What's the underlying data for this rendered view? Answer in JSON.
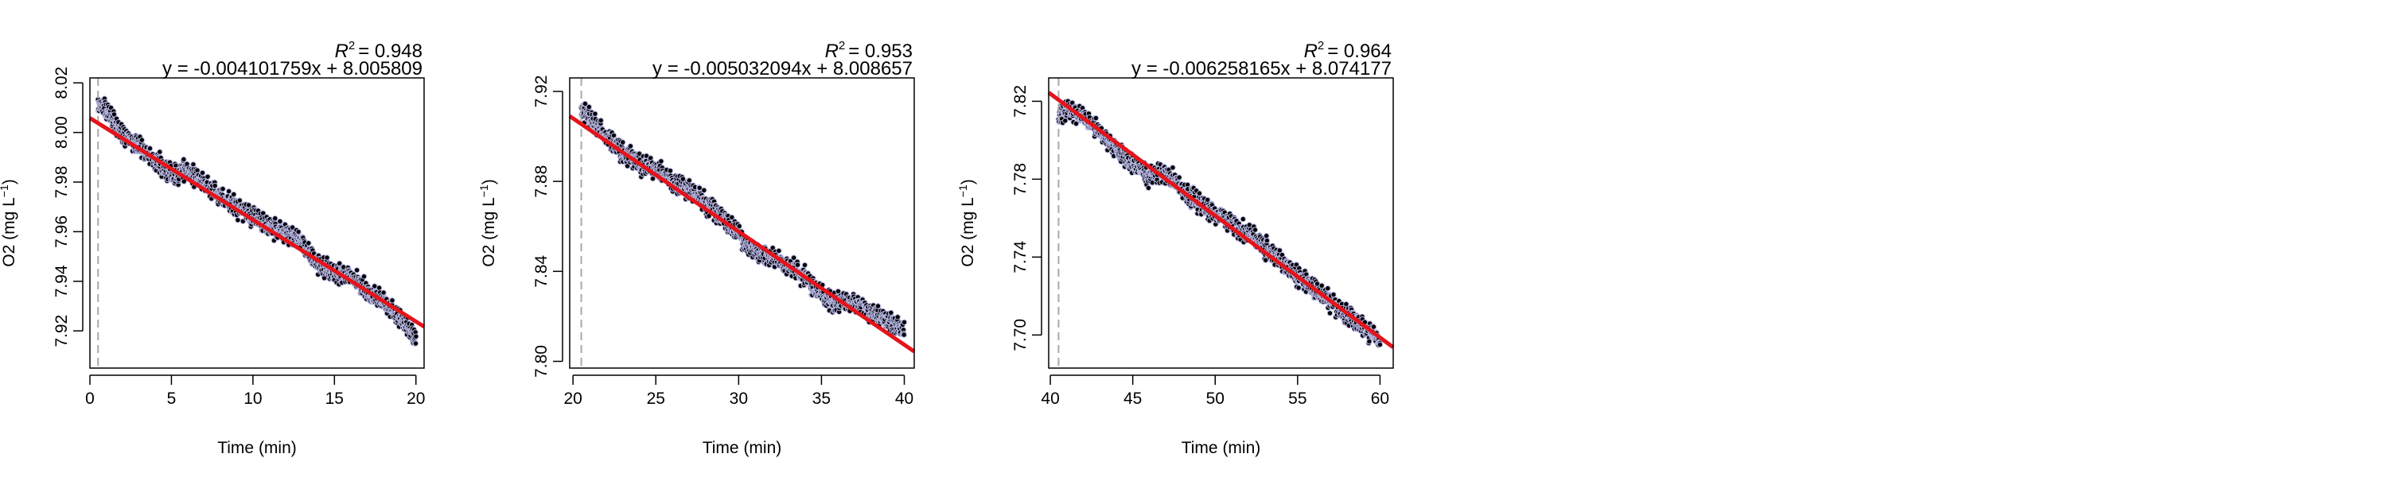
{
  "figure": {
    "background": "#ffffff",
    "point_fill": "#000000",
    "point_stroke": "#b9b9e6",
    "fit_color": "#e4141b",
    "cutoff_color": "#a8a8a8"
  },
  "chart_data": [
    {
      "type": "scatter",
      "title": "",
      "xlabel": "Time (min)",
      "ylabel_prefix": "O2 (mg L",
      "ylabel_exp": "−1",
      "ylabel_suffix": ")",
      "xlim": [
        0,
        20.5
      ],
      "ylim": [
        7.905,
        8.022
      ],
      "xticks": [
        0,
        5,
        10,
        15,
        20
      ],
      "xtick_labels": [
        "0",
        "5",
        "10",
        "15",
        "20"
      ],
      "yticks": [
        7.92,
        7.94,
        7.96,
        7.98,
        8.0,
        8.02
      ],
      "ytick_labels": [
        "7.92",
        "7.94",
        "7.96",
        "7.98",
        "8.00",
        "8.02"
      ],
      "r2_prefix": "R",
      "r2_exp": "2",
      "r2_value": "= 0.948",
      "equation": "y = -0.004101759x + 8.005809",
      "fit": {
        "slope": -0.004101759,
        "intercept": 8.005809
      },
      "cutoff_x": 0.5,
      "series": {
        "start": 0.5,
        "end": 20.0,
        "n": 1170,
        "noise": 0.0035,
        "points": [
          [
            0.5,
            8.011
          ],
          [
            1.0,
            8.01
          ],
          [
            1.5,
            8.004
          ],
          [
            2.0,
            7.999
          ],
          [
            3.0,
            7.995
          ],
          [
            4.0,
            7.989
          ],
          [
            5.0,
            7.983
          ],
          [
            6.0,
            7.985
          ],
          [
            7.0,
            7.979
          ],
          [
            8.0,
            7.974
          ],
          [
            9.0,
            7.97
          ],
          [
            10.0,
            7.966
          ],
          [
            11.0,
            7.962
          ],
          [
            12.0,
            7.96
          ],
          [
            13.0,
            7.955
          ],
          [
            14.0,
            7.947
          ],
          [
            15.0,
            7.943
          ],
          [
            16.0,
            7.942
          ],
          [
            17.0,
            7.936
          ],
          [
            18.0,
            7.932
          ],
          [
            19.0,
            7.925
          ],
          [
            20.0,
            7.917
          ]
        ]
      }
    },
    {
      "type": "scatter",
      "title": "",
      "xlabel": "Time (min)",
      "ylabel_prefix": "O2 (mg L",
      "ylabel_exp": "−1",
      "ylabel_suffix": ")",
      "xlim": [
        19.8,
        40.6
      ],
      "ylim": [
        7.797,
        7.926
      ],
      "xticks": [
        20,
        25,
        30,
        35,
        40
      ],
      "xtick_labels": [
        "20",
        "25",
        "30",
        "35",
        "40"
      ],
      "yticks": [
        7.8,
        7.84,
        7.88,
        7.92
      ],
      "ytick_labels": [
        "7.80",
        "7.84",
        "7.88",
        "7.92"
      ],
      "r2_prefix": "R",
      "r2_exp": "2",
      "r2_value": "= 0.953",
      "equation": "y = -0.005032094x + 8.008657",
      "fit": {
        "slope": -0.005032094,
        "intercept": 8.008657
      },
      "cutoff_x": 20.5,
      "series": {
        "start": 20.5,
        "end": 40.0,
        "n": 1170,
        "noise": 0.004,
        "points": [
          [
            20.5,
            7.912
          ],
          [
            21.0,
            7.909
          ],
          [
            22.0,
            7.9
          ],
          [
            23.0,
            7.893
          ],
          [
            24.0,
            7.888
          ],
          [
            25.0,
            7.886
          ],
          [
            26.0,
            7.88
          ],
          [
            27.0,
            7.876
          ],
          [
            28.0,
            7.87
          ],
          [
            29.0,
            7.864
          ],
          [
            30.0,
            7.857
          ],
          [
            31.0,
            7.848
          ],
          [
            32.0,
            7.846
          ],
          [
            33.0,
            7.843
          ],
          [
            34.0,
            7.838
          ],
          [
            35.0,
            7.829
          ],
          [
            36.0,
            7.826
          ],
          [
            37.0,
            7.826
          ],
          [
            38.0,
            7.822
          ],
          [
            39.0,
            7.818
          ],
          [
            40.0,
            7.814
          ]
        ]
      }
    },
    {
      "type": "scatter",
      "title": "",
      "xlabel": "Time (min)",
      "ylabel_prefix": "O2 (mg L",
      "ylabel_exp": "−1",
      "ylabel_suffix": ")",
      "xlim": [
        39.9,
        60.8
      ],
      "ylim": [
        7.683,
        7.832
      ],
      "xticks": [
        40,
        45,
        50,
        55,
        60
      ],
      "xtick_labels": [
        "40",
        "45",
        "50",
        "55",
        "60"
      ],
      "yticks": [
        7.7,
        7.74,
        7.78,
        7.82
      ],
      "ytick_labels": [
        "7.70",
        "7.74",
        "7.78",
        "7.82"
      ],
      "r2_prefix": "R",
      "r2_exp": "2",
      "r2_value": "= 0.964",
      "equation": "y = -0.006258165x + 8.074177",
      "fit": {
        "slope": -0.006258165,
        "intercept": 8.074177
      },
      "cutoff_x": 40.5,
      "series": {
        "start": 40.5,
        "end": 60.0,
        "n": 1170,
        "noise": 0.0045,
        "points": [
          [
            40.5,
            7.812
          ],
          [
            41.0,
            7.817
          ],
          [
            42.0,
            7.812
          ],
          [
            43.0,
            7.805
          ],
          [
            44.0,
            7.795
          ],
          [
            45.0,
            7.788
          ],
          [
            46.0,
            7.782
          ],
          [
            47.0,
            7.783
          ],
          [
            48.0,
            7.775
          ],
          [
            49.0,
            7.768
          ],
          [
            50.0,
            7.762
          ],
          [
            51.0,
            7.757
          ],
          [
            52.0,
            7.752
          ],
          [
            53.0,
            7.745
          ],
          [
            54.0,
            7.738
          ],
          [
            55.0,
            7.73
          ],
          [
            56.0,
            7.724
          ],
          [
            57.0,
            7.717
          ],
          [
            58.0,
            7.71
          ],
          [
            59.0,
            7.704
          ],
          [
            60.0,
            7.698
          ]
        ]
      }
    }
  ]
}
